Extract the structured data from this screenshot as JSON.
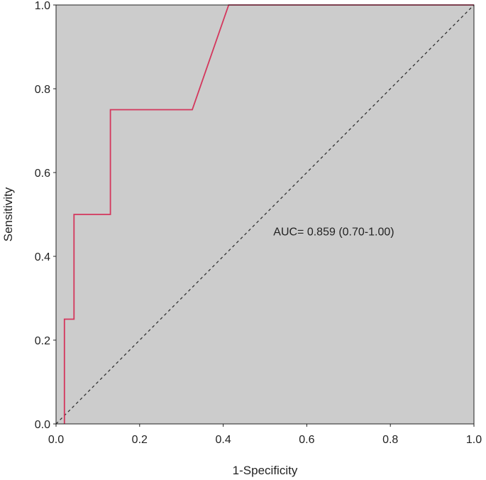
{
  "chart_data": {
    "type": "line",
    "title": "",
    "xlabel": "1-Specificity",
    "ylabel": "Sensitivity",
    "xlim": [
      0.0,
      1.0
    ],
    "ylim": [
      0.0,
      1.0
    ],
    "x_ticks": [
      "0.0",
      "0.2",
      "0.4",
      "0.6",
      "0.8",
      "1.0"
    ],
    "y_ticks": [
      "0.0",
      "0.2",
      "0.4",
      "0.6",
      "0.8",
      "1.0"
    ],
    "grid": false,
    "background_color": "#cccccc",
    "series": [
      {
        "color": "#d4365c",
        "x": [
          0.02,
          0.02,
          0.043,
          0.043,
          0.13,
          0.13,
          0.326,
          0.413,
          1.0
        ],
        "y": [
          0.0,
          0.25,
          0.25,
          0.5,
          0.5,
          0.75,
          0.75,
          1.0,
          1.0
        ]
      }
    ],
    "reference_line": {
      "style": "dashed",
      "color": "#333333",
      "x": [
        0.0,
        1.0
      ],
      "y": [
        0.0,
        1.0
      ]
    },
    "annotations": [
      {
        "text": "AUC= 0.859 (0.70-1.00)",
        "x": 0.52,
        "y": 0.45
      }
    ]
  }
}
